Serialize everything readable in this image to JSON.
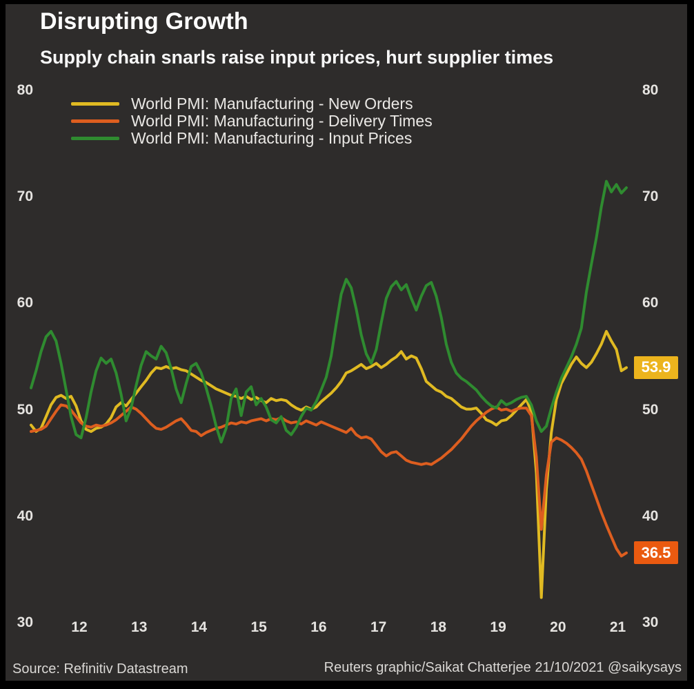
{
  "header": {
    "title": "Disrupting Growth",
    "subtitle": "Supply chain snarls raise input prices, hurt supplier times"
  },
  "footer": {
    "source": "Source: Refinitiv Datastream",
    "credit": "Reuters graphic/Saikat Chatterjee 21/10/2021 @saikysays"
  },
  "colors": {
    "background": "#2e2c2b",
    "frame": "#000000",
    "text": "#ffffff",
    "axis_text": "#e6e4e1"
  },
  "chart_data": {
    "type": "line",
    "title": "Disrupting Growth",
    "subtitle": "Supply chain snarls raise input prices, hurt supplier times",
    "frequency": "monthly",
    "x_tick_labels": [
      "12",
      "13",
      "14",
      "15",
      "16",
      "17",
      "18",
      "19",
      "20",
      "21"
    ],
    "y_ticks": [
      80,
      70,
      60,
      50,
      40,
      30
    ],
    "ylim": [
      30,
      80
    ],
    "grid": false,
    "legend_position": "top-left",
    "series": [
      {
        "name": "World PMI: Manufacturing - New Orders",
        "color": "#e0ba22",
        "end_label": "53.9",
        "end_label_bg": "#ecb41d",
        "values": [
          48.5,
          47.9,
          48.2,
          49.3,
          50.4,
          51.1,
          51.3,
          51.0,
          51.2,
          50.3,
          48.9,
          48.1,
          47.9,
          48.2,
          48.3,
          48.6,
          49.2,
          50.2,
          50.6,
          50.3,
          50.9,
          51.5,
          52.1,
          52.7,
          53.4,
          53.9,
          53.8,
          54.0,
          53.8,
          53.9,
          53.7,
          53.6,
          53.3,
          53.0,
          52.7,
          52.5,
          52.2,
          51.9,
          51.7,
          51.5,
          51.3,
          51.2,
          51.0,
          51.2,
          50.9,
          51.1,
          50.8,
          50.6,
          51.0,
          50.8,
          50.9,
          50.8,
          50.4,
          50.1,
          49.9,
          50.2,
          50.0,
          50.2,
          50.7,
          51.1,
          51.5,
          52.0,
          52.6,
          53.4,
          53.6,
          53.9,
          54.2,
          53.8,
          54.0,
          54.3,
          53.9,
          54.2,
          54.6,
          54.9,
          55.4,
          54.7,
          55.0,
          54.8,
          53.8,
          52.6,
          52.2,
          51.8,
          51.6,
          51.2,
          51.0,
          50.6,
          50.2,
          50.0,
          50.0,
          50.1,
          49.6,
          49.0,
          48.8,
          48.5,
          48.9,
          49.0,
          49.4,
          49.9,
          50.4,
          50.9,
          49.8,
          44.0,
          32.3,
          42.5,
          47.8,
          50.9,
          52.4,
          53.3,
          54.2,
          54.9,
          54.3,
          53.9,
          54.4,
          55.2,
          56.1,
          57.3,
          56.4,
          55.6,
          53.6,
          53.9
        ]
      },
      {
        "name": "World PMI: Manufacturing - Delivery Times",
        "color": "#dd5e1f",
        "end_label": "36.5",
        "end_label_bg": "#ea5a10",
        "values": [
          47.9,
          48.0,
          48.1,
          48.4,
          49.1,
          49.8,
          50.4,
          50.3,
          49.9,
          49.3,
          48.7,
          48.4,
          48.3,
          48.5,
          48.4,
          48.5,
          48.7,
          49.0,
          49.4,
          49.8,
          50.2,
          50.0,
          49.6,
          49.1,
          48.6,
          48.2,
          48.1,
          48.3,
          48.6,
          48.9,
          49.1,
          48.6,
          48.0,
          47.9,
          47.5,
          47.8,
          48.0,
          48.2,
          48.3,
          48.5,
          48.7,
          48.6,
          48.8,
          48.7,
          48.9,
          49.0,
          49.1,
          48.9,
          49.1,
          49.0,
          49.2,
          48.9,
          48.7,
          48.8,
          48.6,
          48.9,
          48.7,
          48.5,
          48.8,
          48.6,
          48.4,
          48.2,
          48.0,
          47.8,
          48.2,
          47.6,
          47.3,
          47.4,
          47.2,
          46.6,
          46.0,
          45.6,
          45.9,
          46.0,
          45.6,
          45.2,
          45.0,
          44.9,
          44.8,
          44.9,
          44.8,
          45.1,
          45.4,
          45.8,
          46.2,
          46.7,
          47.2,
          47.8,
          48.4,
          48.9,
          49.3,
          49.7,
          50.0,
          50.2,
          49.9,
          50.0,
          49.8,
          50.0,
          50.1,
          50.1,
          49.4,
          45.5,
          38.7,
          43.8,
          46.9,
          47.3,
          47.1,
          46.8,
          46.4,
          45.9,
          45.3,
          44.2,
          42.9,
          41.6,
          40.3,
          39.1,
          38.0,
          36.9,
          36.2,
          36.5
        ]
      },
      {
        "name": "World PMI: Manufacturing - Input Prices",
        "color": "#2f8b30",
        "end_label": null,
        "end_label_bg": null,
        "values": [
          52.0,
          53.6,
          55.4,
          56.8,
          57.3,
          56.4,
          54.3,
          51.8,
          49.3,
          47.6,
          47.3,
          49.2,
          51.6,
          53.6,
          54.8,
          54.3,
          54.7,
          53.4,
          51.4,
          48.9,
          50.1,
          52.2,
          54.1,
          55.4,
          55.0,
          54.7,
          55.9,
          55.3,
          53.8,
          51.9,
          50.6,
          52.4,
          54.0,
          54.3,
          53.4,
          52.0,
          50.3,
          48.4,
          46.9,
          48.2,
          51.0,
          51.9,
          49.4,
          51.6,
          52.1,
          50.4,
          51.0,
          50.2,
          49.0,
          48.7,
          49.3,
          48.0,
          47.6,
          48.3,
          49.3,
          50.1,
          49.9,
          50.7,
          51.8,
          53.0,
          55.0,
          58.0,
          60.8,
          62.2,
          61.4,
          59.4,
          57.0,
          55.2,
          54.3,
          55.6,
          58.1,
          60.4,
          61.5,
          62.0,
          61.2,
          61.7,
          60.4,
          59.3,
          60.6,
          61.6,
          61.9,
          60.6,
          58.6,
          56.1,
          54.4,
          53.4,
          52.9,
          52.6,
          52.2,
          51.8,
          51.2,
          50.7,
          50.3,
          50.1,
          50.8,
          50.4,
          50.6,
          50.9,
          51.1,
          51.2,
          50.4,
          48.9,
          47.9,
          48.4,
          50.1,
          51.6,
          52.9,
          53.9,
          54.9,
          56.1,
          57.6,
          61.0,
          63.6,
          66.1,
          69.0,
          71.4,
          70.4,
          71.1,
          70.3,
          70.8
        ]
      }
    ]
  }
}
